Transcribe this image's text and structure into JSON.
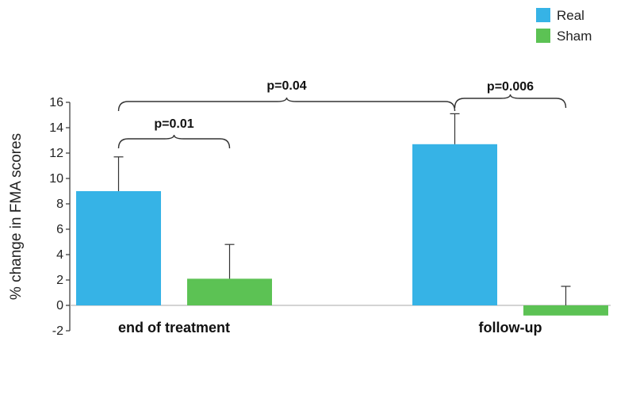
{
  "chart_data": {
    "type": "bar",
    "categories": [
      "end of treatment",
      "follow-up"
    ],
    "series": [
      {
        "name": "Real",
        "color": "#36b3e6",
        "values": [
          9.0,
          12.7
        ],
        "errors": [
          2.7,
          2.4
        ]
      },
      {
        "name": "Sham",
        "color": "#5cc254",
        "values": [
          2.1,
          -0.8
        ],
        "errors": [
          2.7,
          2.3
        ]
      }
    ],
    "ylabel": "% change in FMA scores",
    "xlabel": "",
    "ylim": [
      -2,
      16
    ],
    "yticks": [
      -2,
      0,
      2,
      4,
      6,
      8,
      10,
      12,
      14,
      16
    ],
    "legend_position": "top-right",
    "annotations": [
      {
        "label": "p=0.01",
        "from": "end of treatment/Real",
        "to": "end of treatment/Sham"
      },
      {
        "label": "p=0.04",
        "from": "end of treatment/Real",
        "to": "follow-up/Real"
      },
      {
        "label": "p=0.006",
        "from": "follow-up/Real",
        "to": "follow-up/Sham"
      }
    ]
  }
}
